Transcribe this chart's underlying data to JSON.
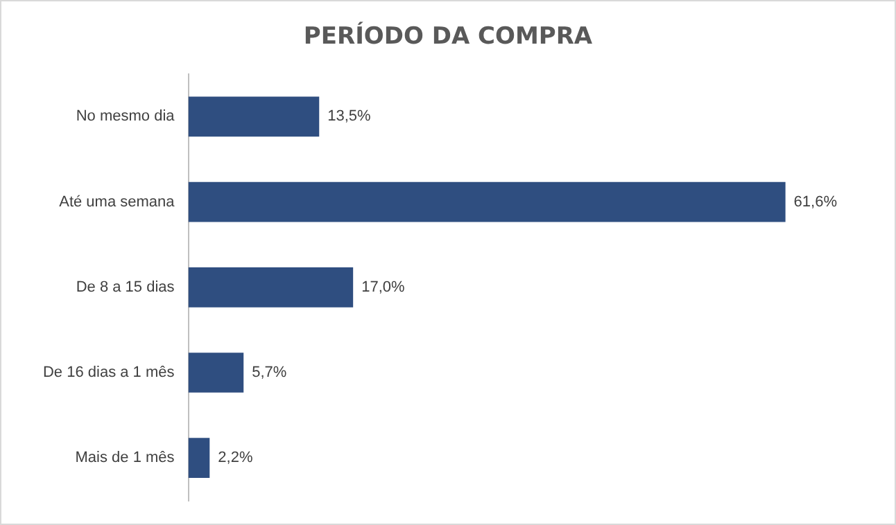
{
  "chart_data": {
    "type": "bar",
    "orientation": "horizontal",
    "title": "PERÍODO DA COMPRA",
    "categories": [
      "No mesmo dia",
      "Até uma semana",
      "De 8 a 15 dias",
      "De 16 dias a 1 mês",
      "Mais de 1 mês"
    ],
    "values": [
      13.5,
      61.6,
      17.0,
      5.7,
      2.2
    ],
    "value_labels": [
      "13,5%",
      "61,6%",
      "17,0%",
      "5,7%",
      "2,2%"
    ],
    "color": "#2f4e80",
    "tick_labels": "y",
    "grid": false,
    "legend": false
  }
}
